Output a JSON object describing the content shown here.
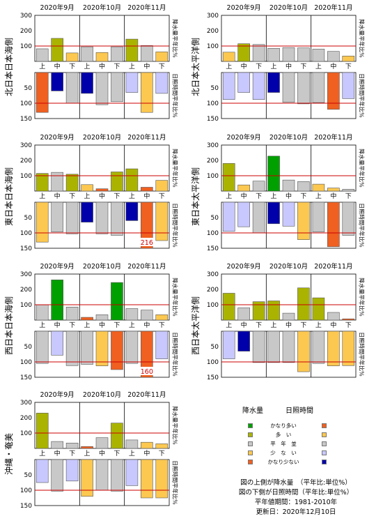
{
  "months": [
    "2020年9月",
    "2020年10月",
    "2020年11月"
  ],
  "decades": [
    "上",
    "中",
    "下"
  ],
  "upper_side_label": "降水量平年比%",
  "lower_side_label": "日照時間平年比%",
  "colors": {
    "precip": {
      "very_high": "#00a000",
      "high": "#aab400",
      "normal": "#c8c8c8",
      "low": "#fcc850",
      "very_low": "#f06020"
    },
    "sunshine": {
      "very_high": "#f06020",
      "high": "#fcc850",
      "normal": "#c8c8c8",
      "low": "#c8c8ff",
      "very_low": "#0000aa"
    },
    "reference_line": "#cc0000"
  },
  "legend": {
    "precip_header": "降水量",
    "sun_header": "日照時間",
    "labels": [
      "かなり多い",
      "多　い",
      "平　年　並",
      "少　な　い",
      "かなり少ない"
    ],
    "notes": [
      "図の上側が降水量　（平年比:単位%）",
      "図の下側が日照時間（平年比:単位%）",
      "平年値期間：1981-2010年",
      "更新日：2020年12月10日"
    ]
  },
  "chart_data": [
    {
      "type": "bar",
      "title": "北日本日本海側",
      "categories": [
        "9月上",
        "9月中",
        "9月下",
        "10月上",
        "10月中",
        "10月下",
        "11月上",
        "11月中",
        "11月下"
      ],
      "precip": {
        "ylabel": "降水量平年比%",
        "ylim": [
          0,
          300
        ],
        "ticks": [
          100,
          200,
          300
        ],
        "reference": 100,
        "values": [
          82,
          150,
          55,
          95,
          58,
          95,
          145,
          103,
          62
        ],
        "classes": [
          "normal",
          "high",
          "low",
          "normal",
          "low",
          "normal",
          "high",
          "normal",
          "low"
        ]
      },
      "sunshine": {
        "ylabel": "日照時間平年比%",
        "ylim": [
          0,
          150
        ],
        "ticks": [
          50,
          100,
          150
        ],
        "reference": 100,
        "values": [
          130,
          60,
          100,
          68,
          105,
          95,
          65,
          130,
          68
        ],
        "classes": [
          "very_high",
          "very_low",
          "normal",
          "very_low",
          "normal",
          "normal",
          "low",
          "high",
          "low"
        ]
      }
    },
    {
      "type": "bar",
      "title": "北日本太平洋側",
      "categories": [
        "9月上",
        "9月中",
        "9月下",
        "10月上",
        "10月中",
        "10月下",
        "11月上",
        "11月中",
        "11月下"
      ],
      "precip": {
        "ylabel": "降水量平年比%",
        "ylim": [
          0,
          300
        ],
        "ticks": [
          100,
          200,
          300
        ],
        "reference": 100,
        "values": [
          60,
          115,
          110,
          85,
          90,
          88,
          80,
          65,
          35
        ],
        "classes": [
          "low",
          "high",
          "normal",
          "normal",
          "normal",
          "normal",
          "normal",
          "normal",
          "low"
        ]
      },
      "sunshine": {
        "ylabel": "日照時間平年比%",
        "ylim": [
          0,
          150
        ],
        "ticks": [
          50,
          100,
          150
        ],
        "reference": 100,
        "values": [
          88,
          65,
          88,
          65,
          97,
          102,
          98,
          120,
          85
        ],
        "classes": [
          "low",
          "low",
          "low",
          "very_low",
          "normal",
          "normal",
          "normal",
          "very_high",
          "low"
        ]
      }
    },
    {
      "type": "bar",
      "title": "東日本日本海側",
      "categories": [
        "9月上",
        "9月中",
        "9月下",
        "10月上",
        "10月中",
        "10月下",
        "11月上",
        "11月中",
        "11月下"
      ],
      "precip": {
        "ylabel": "降水量平年比%",
        "ylim": [
          0,
          300
        ],
        "ticks": [
          100,
          200,
          300
        ],
        "reference": 100,
        "values": [
          115,
          122,
          110,
          42,
          15,
          125,
          145,
          25,
          70
        ],
        "classes": [
          "high",
          "normal",
          "high",
          "low",
          "very_low",
          "high",
          "high",
          "very_low",
          "low"
        ]
      },
      "sunshine": {
        "ylabel": "日照時間平年比%",
        "ylim": [
          0,
          150
        ],
        "ticks": [
          50,
          100,
          150
        ],
        "reference": 100,
        "values": [
          130,
          97,
          103,
          65,
          103,
          108,
          60,
          216,
          125
        ],
        "classes": [
          "high",
          "normal",
          "normal",
          "very_low",
          "normal",
          "normal",
          "very_low",
          "very_high",
          "high"
        ],
        "labels": [
          null,
          null,
          null,
          null,
          null,
          null,
          null,
          "216",
          null
        ]
      }
    },
    {
      "type": "bar",
      "title": "東日本太平洋側",
      "categories": [
        "9月上",
        "9月中",
        "9月下",
        "10月上",
        "10月中",
        "10月下",
        "11月上",
        "11月中",
        "11月下"
      ],
      "precip": {
        "ylabel": "降水量平年比%",
        "ylim": [
          0,
          300
        ],
        "ticks": [
          100,
          200,
          300
        ],
        "reference": 100,
        "values": [
          180,
          40,
          65,
          228,
          72,
          62,
          45,
          20,
          12
        ],
        "classes": [
          "high",
          "low",
          "normal",
          "very_high",
          "normal",
          "normal",
          "low",
          "low",
          "normal"
        ]
      },
      "sunshine": {
        "ylabel": "日照時間平年比%",
        "ylim": [
          0,
          150
        ],
        "ticks": [
          50,
          100,
          150
        ],
        "reference": 100,
        "values": [
          95,
          80,
          100,
          70,
          78,
          122,
          97,
          145,
          108
        ],
        "classes": [
          "low",
          "low",
          "normal",
          "very_low",
          "low",
          "high",
          "normal",
          "very_high",
          "normal"
        ]
      }
    },
    {
      "type": "bar",
      "title": "西日本日本海側",
      "categories": [
        "9月上",
        "9月中",
        "9月下",
        "10月上",
        "10月中",
        "10月下",
        "11月上",
        "11月中",
        "11月下"
      ],
      "precip": {
        "ylabel": "降水量平年比%",
        "ylim": [
          0,
          300
        ],
        "ticks": [
          100,
          200,
          300
        ],
        "reference": 100,
        "values": [
          100,
          262,
          85,
          18,
          35,
          245,
          75,
          65,
          35
        ],
        "classes": [
          "normal",
          "very_high",
          "normal",
          "very_low",
          "normal",
          "very_high",
          "normal",
          "normal",
          "low"
        ]
      },
      "sunshine": {
        "ylabel": "日照時間平年比%",
        "ylim": [
          0,
          150
        ],
        "ticks": [
          50,
          100,
          150
        ],
        "reference": 100,
        "values": [
          105,
          78,
          112,
          108,
          113,
          125,
          105,
          160,
          90
        ],
        "classes": [
          "normal",
          "low",
          "normal",
          "normal",
          "high",
          "very_high",
          "normal",
          "very_high",
          "low"
        ],
        "labels": [
          null,
          null,
          null,
          null,
          null,
          null,
          null,
          "160",
          null
        ]
      }
    },
    {
      "type": "bar",
      "title": "西日本太平洋側",
      "categories": [
        "9月上",
        "9月中",
        "9月下",
        "10月上",
        "10月中",
        "10月下",
        "11月上",
        "11月中",
        "11月下"
      ],
      "precip": {
        "ylabel": "降水量平年比%",
        "ylim": [
          0,
          300
        ],
        "ticks": [
          100,
          200,
          300
        ],
        "reference": 100,
        "values": [
          175,
          80,
          120,
          125,
          45,
          210,
          145,
          50,
          8
        ],
        "classes": [
          "high",
          "normal",
          "high",
          "high",
          "normal",
          "high",
          "high",
          "normal",
          "very_low"
        ]
      },
      "sunshine": {
        "ylabel": "日照時間平年比%",
        "ylim": [
          0,
          150
        ],
        "ticks": [
          50,
          100,
          150
        ],
        "reference": 100,
        "values": [
          90,
          65,
          102,
          102,
          102,
          132,
          105,
          113,
          112
        ],
        "classes": [
          "low",
          "very_low",
          "normal",
          "normal",
          "normal",
          "high",
          "normal",
          "high",
          "high"
        ]
      }
    },
    {
      "type": "bar",
      "title": "沖縄・奄美",
      "categories": [
        "9月上",
        "9月中",
        "9月下",
        "10月上",
        "10月中",
        "10月下",
        "11月上",
        "11月中",
        "11月下"
      ],
      "precip": {
        "ylabel": "降水量平年比%",
        "ylim": [
          0,
          300
        ],
        "ticks": [
          100,
          200,
          300
        ],
        "reference": 100,
        "values": [
          230,
          45,
          35,
          12,
          70,
          165,
          55,
          40,
          30
        ],
        "classes": [
          "high",
          "normal",
          "normal",
          "very_low",
          "normal",
          "high",
          "normal",
          "low",
          "low"
        ]
      },
      "sunshine": {
        "ylabel": "日照時間平年比%",
        "ylim": [
          0,
          150
        ],
        "ticks": [
          50,
          100,
          150
        ],
        "reference": 100,
        "values": [
          75,
          103,
          70,
          120,
          100,
          103,
          85,
          125,
          125
        ],
        "classes": [
          "low",
          "normal",
          "low",
          "high",
          "normal",
          "normal",
          "low",
          "high",
          "high"
        ]
      }
    }
  ]
}
